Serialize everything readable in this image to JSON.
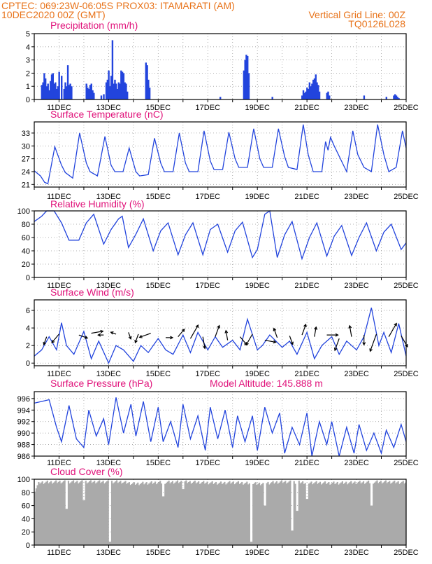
{
  "header": {
    "line1": "CPTEC:   069:23W-06:05S   PROX03: ITAMARATI (AM)",
    "line2": "10DEC2020 00Z (GMT)",
    "grid_note": "Vertical Grid Line: 00Z",
    "code": "TQ0126L028"
  },
  "colors": {
    "header": "#e8731a",
    "title": "#e0127a",
    "line": "#2244dd",
    "cloud": "#aaaaaa",
    "grid": "#9a9a9a"
  },
  "time_axis": {
    "start": "10DEC2020 00Z",
    "end": "25DEC2020 00Z",
    "tick_labels": [
      "11DEC",
      "13DEC",
      "15DEC",
      "17DEC",
      "19DEC",
      "21DEC",
      "23DEC",
      "25DEC"
    ],
    "tick_days": [
      1,
      3,
      5,
      7,
      9,
      11,
      13,
      15
    ]
  },
  "chart_data": [
    {
      "type": "bar",
      "title": "Precipitation (mm/h)",
      "ylim": [
        0,
        5
      ],
      "yticks": [
        0,
        1,
        2,
        3,
        4,
        5
      ],
      "x": [
        0.3,
        0.35,
        0.4,
        0.45,
        0.5,
        0.55,
        0.6,
        0.65,
        0.7,
        0.75,
        0.8,
        0.85,
        0.9,
        0.95,
        1.0,
        1.1,
        1.2,
        1.25,
        1.3,
        1.35,
        1.4,
        1.45,
        1.5,
        2.1,
        2.15,
        2.2,
        2.25,
        2.3,
        2.35,
        2.4,
        2.7,
        2.8,
        2.9,
        2.95,
        3.0,
        3.05,
        3.1,
        3.15,
        3.2,
        3.25,
        3.3,
        3.35,
        3.4,
        3.45,
        3.5,
        3.55,
        3.6,
        3.65,
        3.7,
        3.75,
        4.5,
        4.55,
        4.6,
        4.65,
        7.5,
        8.45,
        8.5,
        8.55,
        8.6,
        8.65,
        9.6,
        10.8,
        10.85,
        10.9,
        10.95,
        11.0,
        11.05,
        11.1,
        11.15,
        11.2,
        11.25,
        11.3,
        11.35,
        11.4,
        11.45,
        11.5,
        11.8,
        11.85,
        11.9,
        13.3,
        14.2,
        14.5,
        14.55,
        14.6,
        14.65,
        14.7
      ],
      "values": [
        1.1,
        1.3,
        2.0,
        1.6,
        1.0,
        1.2,
        0.7,
        1.4,
        1.9,
        2.0,
        1.2,
        1.3,
        0.8,
        1.0,
        2.1,
        1.8,
        0.8,
        1.3,
        1.0,
        2.6,
        1.1,
        1.2,
        1.0,
        1.2,
        0.9,
        0.8,
        1.1,
        1.2,
        0.7,
        0.5,
        0.3,
        0.4,
        1.3,
        1.5,
        2.2,
        1.0,
        1.8,
        4.5,
        1.2,
        1.5,
        1.2,
        0.8,
        1.3,
        1.2,
        2.2,
        2.1,
        2.0,
        1.3,
        1.2,
        0.6,
        2.8,
        2.6,
        1.5,
        0.9,
        0.2,
        2.2,
        3.0,
        3.4,
        3.3,
        2.0,
        0.2,
        0.3,
        0.7,
        0.5,
        0.6,
        0.9,
        0.8,
        1.3,
        1.0,
        1.2,
        1.5,
        1.6,
        1.9,
        1.3,
        1.1,
        0.6,
        0.5,
        0.6,
        0.3,
        0.3,
        0.2,
        0.3,
        0.4,
        0.3,
        0.2,
        0.1
      ]
    },
    {
      "type": "line",
      "title": "Surface Temperature (nC)",
      "ylim": [
        20.4,
        35.6
      ],
      "yticks": [
        21,
        24,
        27,
        30,
        33
      ],
      "x": [
        0.0,
        0.25,
        0.42,
        0.55,
        0.83,
        1.1,
        1.25,
        1.55,
        1.83,
        2.1,
        2.25,
        2.55,
        2.85,
        3.1,
        3.25,
        3.58,
        3.83,
        4.1,
        4.25,
        4.6,
        4.85,
        5.1,
        5.25,
        5.6,
        5.85,
        6.1,
        6.25,
        6.6,
        6.85,
        7.1,
        7.25,
        7.6,
        7.85,
        8.1,
        8.25,
        8.6,
        8.85,
        9.1,
        9.25,
        9.6,
        9.85,
        10.1,
        10.25,
        10.6,
        10.85,
        11.05,
        11.25,
        11.6,
        11.75,
        11.85,
        11.95,
        12.1,
        12.35,
        12.6,
        12.85,
        13.05,
        13.3,
        13.6,
        13.85,
        14.1,
        14.3,
        14.6,
        14.85,
        15.0
      ],
      "values": [
        24.2,
        23.0,
        21.5,
        21.2,
        29.8,
        25.5,
        23.8,
        22.5,
        33.0,
        26.0,
        24.0,
        23.0,
        32.2,
        25.5,
        24.0,
        24.0,
        29.5,
        24.0,
        23.0,
        23.3,
        31.8,
        26.0,
        24.0,
        24.0,
        33.0,
        26.0,
        24.0,
        24.0,
        33.5,
        26.5,
        24.5,
        24.5,
        33.2,
        27.0,
        25.0,
        25.0,
        34.0,
        27.0,
        25.0,
        25.0,
        34.0,
        27.5,
        25.0,
        24.5,
        35.0,
        28.0,
        24.0,
        24.0,
        31.0,
        29.0,
        32.0,
        30.0,
        27.0,
        24.0,
        33.5,
        28.0,
        25.0,
        24.0,
        35.0,
        28.0,
        24.0,
        25.0,
        33.5,
        29.5
      ]
    },
    {
      "type": "line",
      "title": "Relative Humidity (%)",
      "ylim": [
        0,
        100
      ],
      "yticks": [
        0,
        20,
        40,
        60,
        80,
        100
      ],
      "x": [
        0.0,
        0.3,
        0.5,
        0.8,
        1.1,
        1.4,
        1.8,
        2.1,
        2.4,
        2.8,
        3.1,
        3.4,
        3.55,
        3.8,
        4.1,
        4.4,
        4.8,
        5.1,
        5.4,
        5.8,
        6.1,
        6.4,
        6.8,
        7.1,
        7.4,
        7.8,
        8.1,
        8.4,
        8.8,
        9.0,
        9.3,
        9.5,
        9.8,
        10.1,
        10.4,
        10.8,
        11.1,
        11.4,
        11.8,
        12.1,
        12.4,
        12.8,
        13.1,
        13.4,
        13.8,
        14.1,
        14.4,
        14.8,
        15.0
      ],
      "values": [
        84,
        92,
        100,
        100,
        82,
        56,
        56,
        82,
        95,
        50,
        72,
        88,
        92,
        45,
        65,
        88,
        40,
        70,
        82,
        34,
        64,
        82,
        34,
        72,
        80,
        38,
        70,
        83,
        30,
        42,
        95,
        100,
        30,
        64,
        84,
        28,
        60,
        82,
        32,
        62,
        78,
        33,
        60,
        82,
        40,
        68,
        80,
        42,
        52
      ]
    },
    {
      "type": "line",
      "title": "Surface Wind (m/s)",
      "ylim": [
        -0.3,
        7.2
      ],
      "yticks": [
        0,
        2,
        4,
        6
      ],
      "x": [
        0.0,
        0.3,
        0.6,
        0.9,
        1.1,
        1.3,
        1.6,
        2.0,
        2.3,
        2.6,
        3.0,
        3.3,
        3.6,
        4.0,
        4.3,
        4.6,
        5.0,
        5.3,
        5.6,
        6.0,
        6.3,
        6.6,
        7.0,
        7.3,
        7.6,
        8.0,
        8.3,
        8.6,
        9.0,
        9.2,
        9.5,
        10.0,
        10.3,
        10.6,
        11.0,
        11.3,
        11.6,
        12.0,
        12.3,
        12.6,
        13.0,
        13.3,
        13.6,
        13.9,
        14.1,
        14.4,
        14.7,
        15.0
      ],
      "values": [
        0.8,
        1.5,
        3.0,
        1.5,
        4.6,
        2.0,
        1.0,
        3.6,
        0.5,
        2.5,
        0.0,
        2.0,
        1.5,
        0.2,
        2.0,
        1.2,
        2.8,
        1.5,
        1.0,
        3.2,
        1.2,
        3.5,
        1.5,
        3.0,
        1.8,
        2.6,
        1.5,
        5.0,
        1.5,
        2.0,
        3.2,
        1.8,
        2.5,
        1.0,
        3.5,
        0.5,
        2.0,
        3.0,
        1.0,
        2.5,
        1.5,
        3.0,
        6.3,
        2.0,
        3.5,
        1.2,
        4.5,
        0.8
      ],
      "arrow_days": [
        0.5,
        1.0,
        1.8,
        2.3,
        2.8,
        3.3,
        3.8,
        4.2,
        4.7,
        5.3,
        5.8,
        6.3,
        6.8,
        7.3,
        7.8,
        8.3,
        8.8,
        9.3,
        9.8,
        10.3,
        10.8,
        11.3,
        11.8,
        12.3,
        12.8,
        13.3,
        13.8,
        14.3,
        14.8
      ],
      "arrow_values": [
        3.0,
        3.3,
        3.2,
        3.4,
        3.2,
        3.3,
        3.5,
        3.3,
        3.4,
        2.9,
        3.0,
        2.8,
        3.0,
        3.0,
        2.6,
        3.0,
        3.3,
        2.6,
        2.9,
        3.1,
        3.2,
        3.0,
        3.2,
        2.8,
        3.0,
        3.2,
        3.3,
        3.0,
        3.1
      ],
      "arrow_direction_deg": [
        200,
        220,
        110,
        80,
        270,
        290,
        160,
        200,
        250,
        90,
        40,
        30,
        170,
        20,
        350,
        140,
        210,
        100,
        340,
        160,
        20,
        10,
        90,
        200,
        350,
        180,
        200,
        30,
        150
      ],
      "arrow_length_px": [
        12,
        16,
        13,
        17,
        8,
        8,
        10,
        13,
        17,
        10,
        14,
        22,
        17,
        17,
        14,
        15,
        18,
        16,
        14,
        13,
        16,
        14,
        16,
        18,
        16,
        14,
        26,
        22,
        18
      ]
    },
    {
      "type": "line",
      "title": "Surface Pressure (hPa)",
      "annotation": "Model Altitude: 145.888 m",
      "ylim": [
        986,
        997.2
      ],
      "yticks": [
        986,
        988,
        990,
        992,
        994,
        996
      ],
      "x": [
        0.0,
        0.3,
        0.6,
        0.9,
        1.1,
        1.4,
        1.7,
        2.0,
        2.2,
        2.5,
        2.8,
        3.0,
        3.3,
        3.6,
        3.9,
        4.1,
        4.4,
        4.7,
        5.0,
        5.2,
        5.5,
        5.8,
        6.0,
        6.3,
        6.6,
        6.9,
        7.1,
        7.4,
        7.7,
        8.0,
        8.2,
        8.5,
        8.8,
        9.0,
        9.3,
        9.6,
        9.9,
        10.1,
        10.4,
        10.7,
        11.0,
        11.2,
        11.5,
        11.8,
        12.0,
        12.3,
        12.6,
        12.9,
        13.1,
        13.4,
        13.7,
        14.0,
        14.2,
        14.5,
        14.8,
        15.0
      ],
      "values": [
        995.2,
        995.5,
        995.8,
        991.0,
        988.5,
        994.8,
        989.0,
        987.5,
        994.0,
        989.5,
        992.5,
        988.0,
        996.2,
        990.0,
        995.0,
        989.5,
        995.5,
        988.5,
        994.5,
        988.5,
        992.0,
        987.5,
        995.0,
        989.0,
        993.0,
        987.0,
        994.5,
        989.0,
        994.0,
        987.5,
        993.0,
        988.5,
        993.0,
        987.0,
        994.5,
        990.0,
        993.5,
        986.5,
        991.0,
        988.0,
        993.5,
        986.0,
        992.0,
        988.0,
        992.0,
        986.0,
        991.0,
        986.5,
        991.5,
        987.0,
        990.0,
        986.5,
        990.5,
        987.5,
        991.5,
        988.5
      ]
    },
    {
      "type": "bar",
      "title": "Cloud Cover (%)",
      "ylim": [
        0,
        100
      ],
      "yticks": [
        0,
        20,
        40,
        60,
        80,
        100
      ],
      "base_cover_x": [
        0.0,
        0.2,
        1.0,
        3.5,
        4.0,
        5.0,
        6.0,
        7.5,
        8.0,
        9.0,
        10.0,
        11.0,
        12.0,
        13.0,
        14.0,
        15.0
      ],
      "base_cover_values": [
        82,
        95,
        96,
        96,
        93,
        95,
        96,
        94,
        95,
        93,
        96,
        95,
        94,
        95,
        96,
        95
      ],
      "dip_x": [
        1.3,
        2.0,
        3.05,
        5.2,
        6.0,
        8.75,
        9.3,
        10.4,
        10.6,
        11.0,
        13.6
      ],
      "dip_values": [
        55,
        68,
        5,
        74,
        85,
        5,
        60,
        22,
        52,
        70,
        60
      ]
    }
  ]
}
